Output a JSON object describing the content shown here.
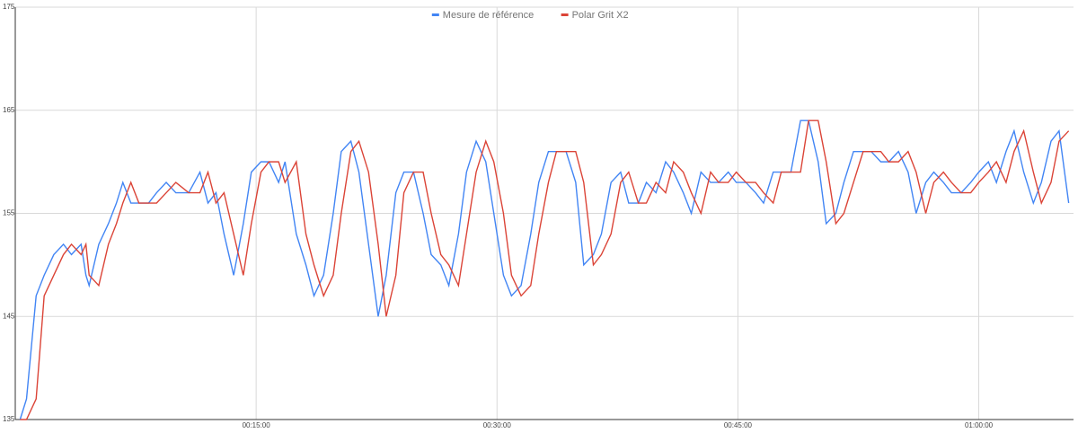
{
  "chart_data": {
    "type": "line",
    "x": [
      0.3,
      0.7,
      1.3,
      1.8,
      2.4,
      3.0,
      3.5,
      4.1,
      4.4,
      4.6,
      5.2,
      5.8,
      6.3,
      6.7,
      7.2,
      7.7,
      8.3,
      8.8,
      9.4,
      10.0,
      10.8,
      11.5,
      12.0,
      12.5,
      13.0,
      13.6,
      14.2,
      14.7,
      15.3,
      15.8,
      16.4,
      16.8,
      17.5,
      18.1,
      18.6,
      19.2,
      19.8,
      20.3,
      20.9,
      21.4,
      22.0,
      22.6,
      23.1,
      23.7,
      24.2,
      24.8,
      25.4,
      25.9,
      26.5,
      27.0,
      27.6,
      28.1,
      28.7,
      29.3,
      29.8,
      30.4,
      30.9,
      31.5,
      32.1,
      32.6,
      33.2,
      33.7,
      34.3,
      34.9,
      35.4,
      36.0,
      36.5,
      37.1,
      37.7,
      38.2,
      38.8,
      39.3,
      39.9,
      40.5,
      41.0,
      41.6,
      42.1,
      42.7,
      43.3,
      43.8,
      44.4,
      44.9,
      45.5,
      46.1,
      46.6,
      47.2,
      47.7,
      48.3,
      48.9,
      49.4,
      50.0,
      50.5,
      51.1,
      51.6,
      52.2,
      52.8,
      53.3,
      53.9,
      54.4,
      55.0,
      55.6,
      56.1,
      56.7,
      57.2,
      57.8,
      58.3,
      58.9,
      59.5,
      60.0,
      60.6,
      61.1,
      61.7,
      62.2,
      62.8,
      63.4,
      63.9,
      64.5,
      65.0,
      65.6
    ],
    "series": [
      {
        "name": "Mesure de référence",
        "color": "#4285f4",
        "values": [
          135,
          137,
          147,
          149,
          151,
          152,
          151,
          152,
          149,
          148,
          152,
          154,
          156,
          158,
          156,
          156,
          156,
          157,
          158,
          157,
          157,
          159,
          156,
          157,
          153,
          149,
          154,
          159,
          160,
          160,
          158,
          160,
          153,
          150,
          147,
          149,
          155,
          161,
          162,
          159,
          152,
          145,
          149,
          157,
          159,
          159,
          155,
          151,
          150,
          148,
          153,
          159,
          162,
          160,
          155,
          149,
          147,
          148,
          153,
          158,
          161,
          161,
          161,
          158,
          150,
          151,
          153,
          158,
          159,
          156,
          156,
          158,
          157,
          160,
          159,
          157,
          155,
          159,
          158,
          158,
          159,
          158,
          158,
          157,
          156,
          159,
          159,
          159,
          164,
          164,
          160,
          154,
          155,
          158,
          161,
          161,
          161,
          160,
          160,
          161,
          159,
          155,
          158,
          159,
          158,
          157,
          157,
          158,
          159,
          160,
          158,
          161,
          163,
          159,
          156,
          158,
          162,
          163,
          156
        ]
      },
      {
        "name": "Polar Grit X2",
        "color": "#db4437",
        "values": [
          135,
          135,
          137,
          147,
          149,
          151,
          152,
          151,
          152,
          149,
          148,
          152,
          154,
          156,
          158,
          156,
          156,
          156,
          157,
          158,
          157,
          157,
          159,
          156,
          157,
          153,
          149,
          154,
          159,
          160,
          160,
          158,
          160,
          153,
          150,
          147,
          149,
          155,
          161,
          162,
          159,
          152,
          145,
          149,
          157,
          159,
          159,
          155,
          151,
          150,
          148,
          153,
          159,
          162,
          160,
          155,
          149,
          147,
          148,
          153,
          158,
          161,
          161,
          161,
          158,
          150,
          151,
          153,
          158,
          159,
          156,
          156,
          158,
          157,
          160,
          159,
          157,
          155,
          159,
          158,
          158,
          159,
          158,
          158,
          157,
          156,
          159,
          159,
          159,
          164,
          164,
          160,
          154,
          155,
          158,
          161,
          161,
          161,
          160,
          160,
          161,
          159,
          155,
          158,
          159,
          158,
          157,
          157,
          158,
          159,
          160,
          158,
          161,
          163,
          159,
          156,
          158,
          162,
          163
        ]
      }
    ],
    "xlim": [
      0,
      65.9
    ],
    "xticks": [
      {
        "value": 15,
        "label": "00:15:00"
      },
      {
        "value": 30,
        "label": "00:30:00"
      },
      {
        "value": 45,
        "label": "00:45:00"
      },
      {
        "value": 60,
        "label": "01:00:00"
      }
    ],
    "ylim": [
      135,
      175
    ],
    "yticks": [
      135,
      145,
      155,
      165,
      175
    ],
    "grid": true,
    "legend": "top"
  }
}
